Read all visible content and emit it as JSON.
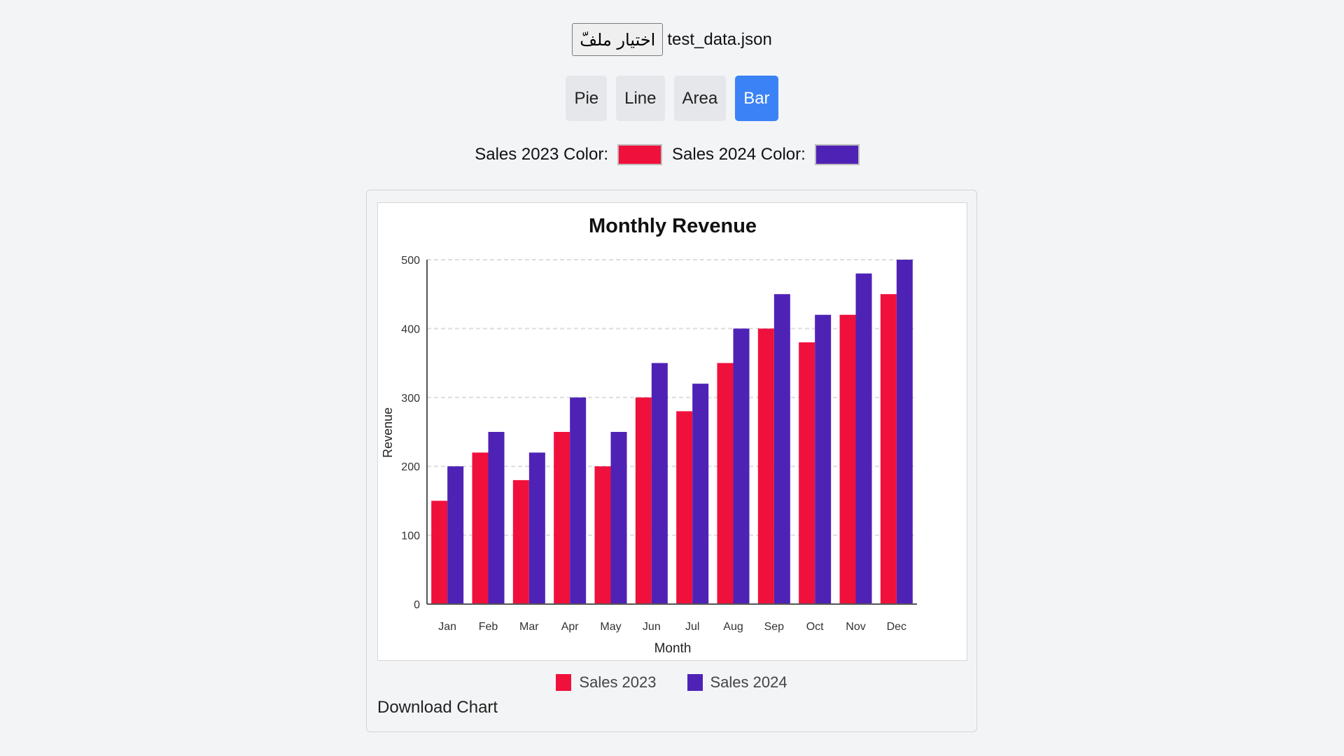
{
  "file_picker": {
    "button_label": "اختيار ملفّ",
    "file_name": "test_data.json"
  },
  "chart_types": [
    {
      "label": "Pie",
      "active": false
    },
    {
      "label": "Line",
      "active": false
    },
    {
      "label": "Area",
      "active": false
    },
    {
      "label": "Bar",
      "active": true
    }
  ],
  "color_controls": [
    {
      "label": "Sales 2023 Color:",
      "color": "#f0103c"
    },
    {
      "label": "Sales 2024 Color:",
      "color": "#4f22b6"
    }
  ],
  "download_label": "Download Chart",
  "chart_data": {
    "type": "bar",
    "title": "Monthly Revenue",
    "xlabel": "Month",
    "ylabel": "Revenue",
    "categories": [
      "Jan",
      "Feb",
      "Mar",
      "Apr",
      "May",
      "Jun",
      "Jul",
      "Aug",
      "Sep",
      "Oct",
      "Nov",
      "Dec"
    ],
    "series": [
      {
        "name": "Sales 2023",
        "color": "#f0103c",
        "values": [
          150,
          220,
          180,
          250,
          200,
          300,
          280,
          350,
          400,
          380,
          420,
          450
        ]
      },
      {
        "name": "Sales 2024",
        "color": "#4f22b6",
        "values": [
          200,
          250,
          220,
          300,
          250,
          350,
          320,
          400,
          450,
          420,
          480,
          500
        ]
      }
    ],
    "ylim": [
      0,
      500
    ],
    "yticks": [
      0,
      100,
      200,
      300,
      400,
      500
    ],
    "grid": true,
    "legend": "bottom"
  }
}
